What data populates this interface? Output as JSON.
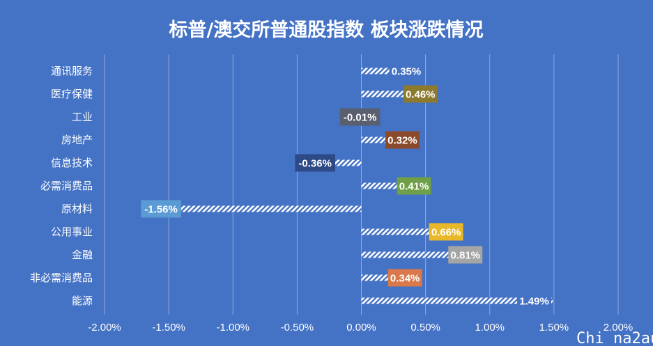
{
  "chart_data": {
    "type": "bar",
    "orientation": "horizontal",
    "title": "标普/澳交所普通股指数 板块涨跌情况",
    "categories": [
      "通讯服务",
      "医疗保健",
      "工业",
      "房地产",
      "信息技术",
      "必需消费品",
      "原材料",
      "公用事业",
      "金融",
      "非必需消费品",
      "能源"
    ],
    "values": [
      0.35,
      0.46,
      -0.01,
      0.32,
      -0.36,
      0.41,
      -1.56,
      0.66,
      0.81,
      0.34,
      1.49
    ],
    "data_labels": [
      "0.35%",
      "0.46%",
      "-0.01%",
      "0.32%",
      "-0.36%",
      "0.41%",
      "-1.56%",
      "0.66%",
      "0.81%",
      "0.34%",
      "1.49%"
    ],
    "label_colors": [
      "#4472C4",
      "#8C7A2E",
      "#595F6E",
      "#8B4A2C",
      "#2D4A87",
      "#6FA048",
      "#5B9BD5",
      "#E8B82A",
      "#A5A5A5",
      "#D9784A",
      "#4472C4"
    ],
    "xlim": [
      -2.0,
      2.0
    ],
    "x_ticks": [
      -2.0,
      -1.5,
      -1.0,
      -0.5,
      0.0,
      0.5,
      1.0,
      1.5,
      2.0
    ],
    "x_tick_labels": [
      "-2.00%",
      "-1.50%",
      "-1.00%",
      "-0.50%",
      "0.00%",
      "0.50%",
      "1.00%",
      "1.50%",
      "2.00%"
    ],
    "grid": "vertical",
    "xlabel": "",
    "ylabel": ""
  },
  "watermark": "Chi na2au",
  "colors": {
    "background": "#4472C4",
    "bar_stripe": "#ffffff",
    "gridline": "#8FAADC"
  }
}
